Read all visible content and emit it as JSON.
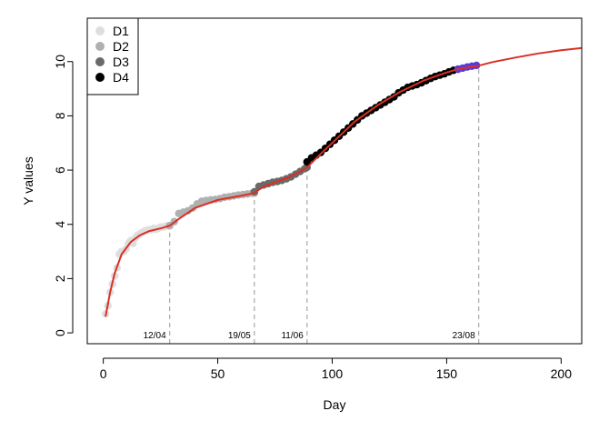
{
  "chart_data": {
    "type": "scatter",
    "xlabel": "Day",
    "ylabel": "Y values",
    "xlim": [
      -7,
      209
    ],
    "ylim": [
      -0.4,
      11.6
    ],
    "x_ticks": [
      "0",
      "50",
      "100",
      "150",
      "200"
    ],
    "y_ticks": [
      "0",
      "2",
      "4",
      "6",
      "8",
      "10"
    ],
    "x_tick_values": [
      0,
      50,
      100,
      150,
      200
    ],
    "y_tick_values": [
      0,
      2,
      4,
      6,
      8,
      10
    ],
    "legend": {
      "position": "top-left",
      "entries": [
        {
          "label": "D1",
          "color": "#dedede"
        },
        {
          "label": "D2",
          "color": "#b0b0b0"
        },
        {
          "label": "D3",
          "color": "#6a6a6a"
        },
        {
          "label": "D4",
          "color": "#000000"
        }
      ]
    },
    "vertical_markers": [
      {
        "x": 29,
        "label": "12/04"
      },
      {
        "x": 66,
        "label": "19/05"
      },
      {
        "x": 89,
        "label": "11/06"
      },
      {
        "x": 164,
        "label": "23/08"
      }
    ],
    "fit_curve": {
      "color": "#d93025",
      "x": [
        1,
        3,
        5,
        8,
        12,
        16,
        20,
        25,
        29,
        33,
        40,
        50,
        60,
        66,
        70,
        75,
        80,
        85,
        89,
        95,
        100,
        105,
        110,
        115,
        120,
        125,
        130,
        135,
        140,
        145,
        150,
        155,
        160,
        164,
        170,
        180,
        190,
        200,
        209
      ],
      "y": [
        0.6,
        1.5,
        2.2,
        2.9,
        3.35,
        3.6,
        3.75,
        3.85,
        3.95,
        4.2,
        4.6,
        4.9,
        5.05,
        5.15,
        5.4,
        5.55,
        5.7,
        5.9,
        6.1,
        6.6,
        7.0,
        7.4,
        7.8,
        8.1,
        8.4,
        8.65,
        8.9,
        9.1,
        9.3,
        9.45,
        9.6,
        9.72,
        9.8,
        9.85,
        9.98,
        10.15,
        10.3,
        10.42,
        10.5
      ]
    },
    "series": [
      {
        "name": "D1",
        "color": "#dedede",
        "x": [
          1,
          2,
          3,
          4,
          5,
          6,
          7,
          8,
          9,
          10,
          11,
          12,
          13,
          14,
          15,
          16,
          17,
          18,
          19,
          20,
          21,
          22,
          23,
          24,
          25,
          26,
          27,
          28,
          29
        ],
        "y": [
          0.7,
          1.0,
          1.5,
          1.8,
          2.1,
          2.4,
          2.9,
          3.0,
          3.0,
          3.1,
          3.3,
          3.4,
          3.3,
          3.5,
          3.6,
          3.65,
          3.7,
          3.75,
          3.78,
          3.8,
          3.8,
          3.85,
          3.82,
          3.85,
          3.9,
          3.9,
          3.92,
          3.95,
          3.95
        ]
      },
      {
        "name": "D2",
        "color": "#b0b0b0",
        "x": [
          29,
          31,
          33,
          35,
          37,
          39,
          41,
          43,
          45,
          47,
          49,
          51,
          53,
          55,
          57,
          59,
          61,
          63,
          65,
          66
        ],
        "y": [
          3.95,
          4.1,
          4.4,
          4.45,
          4.5,
          4.6,
          4.75,
          4.85,
          4.88,
          4.9,
          4.92,
          4.95,
          5.0,
          5.02,
          5.05,
          5.08,
          5.1,
          5.12,
          5.15,
          5.15
        ]
      },
      {
        "name": "D3",
        "color": "#6a6a6a",
        "x": [
          66,
          68,
          70,
          72,
          74,
          76,
          78,
          80,
          82,
          84,
          86,
          88,
          89
        ],
        "y": [
          5.2,
          5.4,
          5.45,
          5.5,
          5.55,
          5.58,
          5.62,
          5.68,
          5.75,
          5.85,
          5.95,
          6.05,
          6.1
        ]
      },
      {
        "name": "D4",
        "color": "#000000",
        "x": [
          89,
          91,
          93,
          95,
          97,
          99,
          101,
          103,
          105,
          107,
          109,
          111,
          113,
          115,
          117,
          119,
          121,
          123,
          125,
          127,
          129,
          131,
          133,
          135,
          137,
          139,
          141,
          143,
          145,
          147,
          149,
          151,
          153,
          155
        ],
        "y": [
          6.3,
          6.45,
          6.55,
          6.65,
          6.8,
          6.95,
          7.1,
          7.25,
          7.4,
          7.55,
          7.7,
          7.85,
          8.0,
          8.1,
          8.2,
          8.3,
          8.4,
          8.5,
          8.6,
          8.7,
          8.85,
          8.95,
          9.05,
          9.1,
          9.15,
          9.22,
          9.3,
          9.38,
          9.45,
          9.5,
          9.55,
          9.62,
          9.68,
          9.72
        ]
      },
      {
        "name": "",
        "color": "#5b3ad8",
        "x": [
          155,
          157,
          159,
          161,
          163
        ],
        "y": [
          9.72,
          9.76,
          9.8,
          9.83,
          9.86
        ]
      }
    ]
  }
}
